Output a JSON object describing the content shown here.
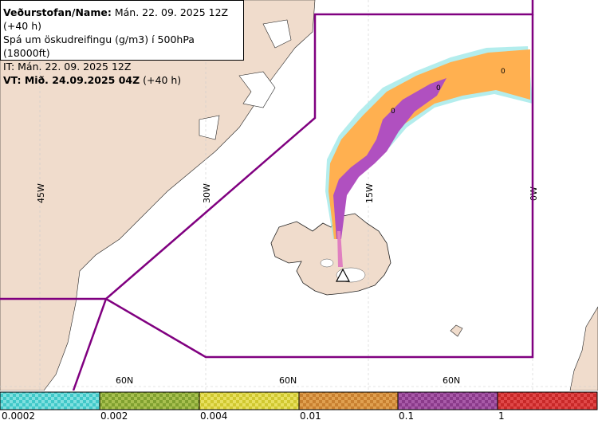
{
  "info": {
    "line1_label": "Veðurstofan/Name:",
    "line1_value": " Mán. 22. 09. 2025 12Z (+40 h)",
    "line2": "Spá um öskudreifingu (g/m3) í 500hPa (18000ft)",
    "line3": "IT: Mán. 22. 09. 2025 12Z",
    "line4_label": "VT: Mið. 24.09.2025 04Z",
    "line4_value": " (+40 h)"
  },
  "graticule": {
    "lon_labels": [
      "45W",
      "30W",
      "15W",
      "0W"
    ],
    "lat_labels": [
      "60N",
      "60N",
      "60N"
    ]
  },
  "legend": {
    "ticks": [
      "0.0002",
      "0.002",
      "0.004",
      "0.01",
      "0.1",
      "1"
    ],
    "colors": [
      "#40c8c8",
      "#80a030",
      "#d0c830",
      "#c88030",
      "#8a3a8a",
      "#c82828"
    ]
  },
  "colors": {
    "land": "#f0dccc",
    "sea": "#ffffff",
    "boundary": "#800080",
    "ash_low": "#ffb050",
    "ash_mid": "#b050c0",
    "ash_fringe": "#a0e8e8"
  },
  "plume_marks": [
    "0",
    "0",
    "0"
  ],
  "volcano_symbol": "triangle"
}
